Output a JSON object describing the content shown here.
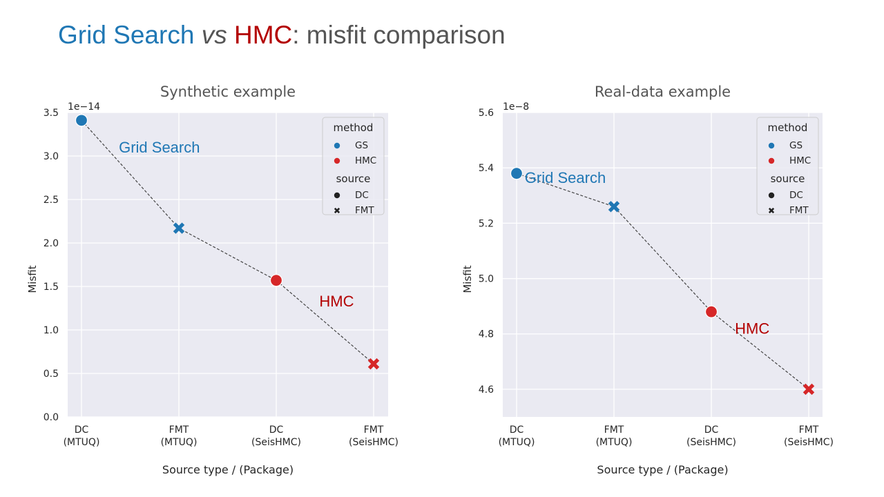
{
  "slide": {
    "title_parts": {
      "gs": "Grid Search",
      "vs": "vs",
      "hmc": "HMC",
      "rest": ": misfit comparison"
    }
  },
  "colors": {
    "gs": "#1f77b4",
    "hmc": "#d62728",
    "gs_annotation": "#1f77b4",
    "hmc_annotation": "#b30000",
    "plot_bg": "#eaeaf2",
    "grid": "#ffffff",
    "line": "#444444"
  },
  "chart_data": [
    {
      "type": "scatter",
      "title": "Synthetic example",
      "xlabel": "Source type / (Package)",
      "ylabel": "Misfit",
      "offset_label": "1e−14",
      "categories": [
        [
          "DC",
          "(MTUQ)"
        ],
        [
          "FMT",
          "(MTUQ)"
        ],
        [
          "DC",
          "(SeisHMC)"
        ],
        [
          "FMT",
          "(SeisHMC)"
        ]
      ],
      "yticks": [
        0.0,
        0.5,
        1.0,
        1.5,
        2.0,
        2.5,
        3.0,
        3.5
      ],
      "ytick_labels": [
        "0.0",
        "0.5",
        "1.0",
        "1.5",
        "2.0",
        "2.5",
        "3.0",
        "3.5"
      ],
      "ylim": [
        0.0,
        3.5
      ],
      "points": [
        {
          "x": 0,
          "y": 3.41,
          "method": "GS",
          "source": "DC"
        },
        {
          "x": 1,
          "y": 2.17,
          "method": "GS",
          "source": "FMT"
        },
        {
          "x": 2,
          "y": 1.57,
          "method": "HMC",
          "source": "DC"
        },
        {
          "x": 3,
          "y": 0.61,
          "method": "HMC",
          "source": "FMT"
        }
      ],
      "annotations": [
        {
          "text": "Grid Search",
          "method": "GS",
          "x": 0.8,
          "y": 3.04
        },
        {
          "text": "HMC",
          "method": "HMC",
          "x": 2.62,
          "y": 1.27
        }
      ],
      "legend": {
        "placement": "top-right",
        "method_title": "method",
        "method_items": [
          "GS",
          "HMC"
        ],
        "source_title": "source",
        "source_items": [
          "DC",
          "FMT"
        ]
      }
    },
    {
      "type": "scatter",
      "title": "Real-data example",
      "xlabel": "Source type / (Package)",
      "ylabel": "Misfit",
      "offset_label": "1e−8",
      "categories": [
        [
          "DC",
          "(MTUQ)"
        ],
        [
          "FMT",
          "(MTUQ)"
        ],
        [
          "DC",
          "(SeisHMC)"
        ],
        [
          "FMT",
          "(SeisHMC)"
        ]
      ],
      "yticks": [
        4.6,
        4.8,
        5.0,
        5.2,
        5.4,
        5.6
      ],
      "ytick_labels": [
        "4.6",
        "4.8",
        "5.0",
        "5.2",
        "5.4",
        "5.6"
      ],
      "ylim": [
        4.5,
        5.6
      ],
      "points": [
        {
          "x": 0,
          "y": 5.38,
          "method": "GS",
          "source": "DC"
        },
        {
          "x": 1,
          "y": 5.26,
          "method": "GS",
          "source": "FMT"
        },
        {
          "x": 2,
          "y": 4.88,
          "method": "HMC",
          "source": "DC"
        },
        {
          "x": 3,
          "y": 4.6,
          "method": "HMC",
          "source": "FMT"
        }
      ],
      "annotations": [
        {
          "text": "Grid Search",
          "method": "GS",
          "x": 0.5,
          "y": 5.345
        },
        {
          "text": "HMC",
          "method": "HMC",
          "x": 2.42,
          "y": 4.8
        }
      ],
      "legend": {
        "placement": "top-right",
        "method_title": "method",
        "method_items": [
          "GS",
          "HMC"
        ],
        "source_title": "source",
        "source_items": [
          "DC",
          "FMT"
        ]
      }
    }
  ]
}
